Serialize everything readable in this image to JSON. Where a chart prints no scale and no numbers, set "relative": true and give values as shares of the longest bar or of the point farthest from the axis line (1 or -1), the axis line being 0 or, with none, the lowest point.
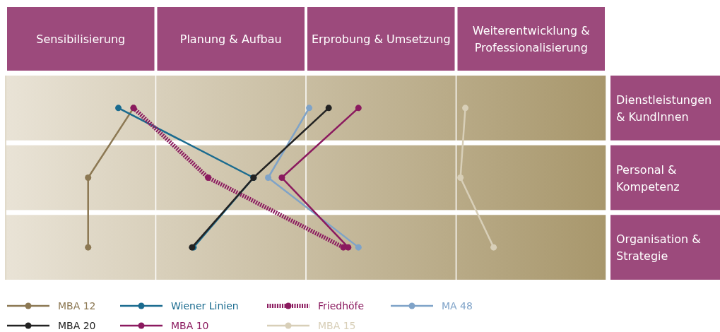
{
  "chart_data": {
    "type": "line",
    "orientation": "horizontal",
    "relative": true,
    "categories": [
      "Dienstleistungen & KundInnen",
      "Personal & Kompetenz",
      "Organisation & Strategie"
    ],
    "bands": [
      {
        "axis": "x",
        "from": 0,
        "to": 0.3077,
        "label": "Sensibilisierung"
      },
      {
        "axis": "x",
        "from": 0.3077,
        "to": 0.6154,
        "label": "Planung & Aufbau"
      },
      {
        "axis": "x",
        "from": 0.6154,
        "to": 0.9231,
        "label": "Erprobung & Umsetzung"
      },
      {
        "axis": "x",
        "from": 0.9231,
        "to": 1.2308,
        "label": "Weiterentwicklung & Professionalisierung"
      }
    ],
    "legend": "bottom",
    "marker": "circle",
    "series": [
      {
        "name": "MBA 12",
        "color": "#8c7853",
        "values": [
          0.262,
          0.169,
          0.169
        ]
      },
      {
        "name": "Wiener Linien",
        "color": "#1a6b8f",
        "values": [
          0.231,
          0.508,
          0.385
        ]
      },
      {
        "name": "Friedhöfe",
        "color": "#8b1a5f",
        "line_style": "dotted",
        "values": [
          0.262,
          0.415,
          0.692
        ]
      },
      {
        "name": "MA 48",
        "color": "#7fa3c8",
        "values": [
          0.622,
          0.538,
          0.723
        ]
      },
      {
        "name": "MBA 20",
        "color": "#222222",
        "values": [
          0.662,
          0.508,
          0.382
        ]
      },
      {
        "name": "MBA 10",
        "color": "#8b1a5f",
        "values": [
          0.723,
          0.566,
          0.702
        ]
      },
      {
        "name": "MBA 15",
        "color": "#d8cfb8",
        "values": [
          0.942,
          0.932,
          1
        ]
      }
    ]
  }
}
